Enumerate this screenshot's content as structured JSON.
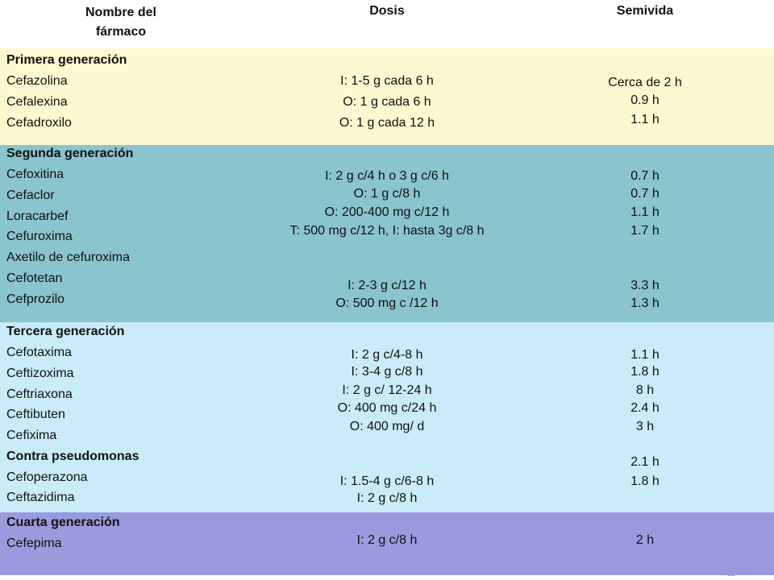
{
  "header": {
    "col1_line1": "Nombre del",
    "col1_line2": "fármaco",
    "col2": "Dosis",
    "col3": "Semivida"
  },
  "colors": {
    "first": "#fdf8cf",
    "second": "#8ac4cd",
    "third": "#c9ecf8",
    "fourth": "#9c9ade"
  },
  "sections": {
    "first": {
      "title": "Primera generación",
      "drugs": [
        "Cefazolina",
        "Cefalexina",
        "Cefadroxilo"
      ],
      "doses": [
        "I: 1-5 g cada 6 h",
        "O: 1 g cada 6 h",
        "O: 1 g cada 12 h"
      ],
      "halflife": [
        "Cerca de 2 h",
        "0.9 h",
        "1.1 h"
      ]
    },
    "second": {
      "title": "Segunda generación",
      "drugs": [
        "Cefoxitina",
        "Cefaclor",
        "Loracarbef",
        "Cefuroxima",
        "Axetilo de cefuroxima",
        "Cefotetan",
        "Cefprozilo"
      ],
      "doses": [
        "I: 2 g c/4 h o 3 g c/6 h",
        "O: 1 g c/8 h",
        "O: 200-400 mg c/12 h",
        "T: 500 mg c/12 h, I: hasta 3g c/8 h",
        "I: 2-3 g c/12 h",
        "O: 500 mg c /12 h"
      ],
      "halflife": [
        "0.7 h",
        "0.7 h",
        "1.1 h",
        "1.7 h",
        "3.3 h",
        "1.3 h"
      ]
    },
    "third": {
      "title": "Tercera generación",
      "drugs": [
        "Cefotaxima",
        "Ceftizoxima",
        "Ceftriaxona",
        "Ceftibuten",
        "Cefixima"
      ],
      "subtitle": "Contra pseudomonas",
      "drugs2": [
        "Cefoperazona",
        "Ceftazidima"
      ],
      "doses": [
        "I: 2 g c/4-8 h",
        "I: 3-4 g c/8 h",
        "I: 2 g c/ 12-24 h",
        "O: 400 mg c/24 h",
        "O: 400 mg/ d",
        "I: 1.5-4 g c/6-8 h",
        "I: 2 g c/8 h"
      ],
      "halflife": [
        "1.1 h",
        "1.8 h",
        "8 h",
        "2.4 h",
        "3 h",
        "2.1 h",
        "1.8 h"
      ]
    },
    "fourth": {
      "title": "Cuarta generación",
      "drugs": [
        "Cefepima"
      ],
      "doses": [
        "I: 2 g c/8 h"
      ],
      "halflife": [
        "2 h"
      ]
    }
  },
  "watermark": "11"
}
